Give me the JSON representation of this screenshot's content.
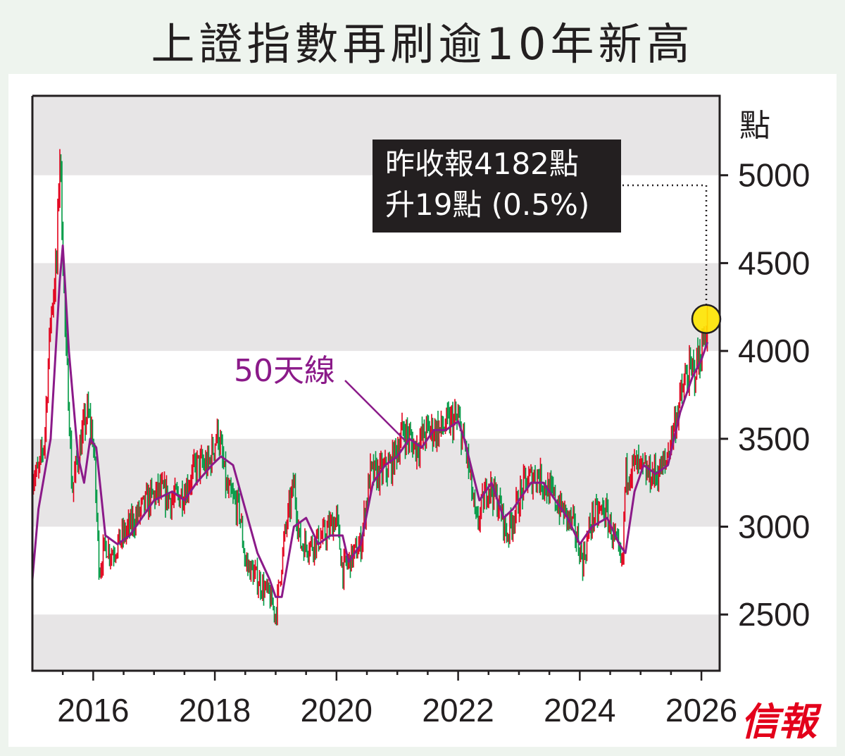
{
  "title": "上證指數再刷逾10年新高",
  "logo": "信報",
  "colors": {
    "up": "#e3001b",
    "down": "#009944",
    "ma": "#8b1a89",
    "band": "#e7e5e6",
    "highlight": "#ffe600"
  },
  "chart_data": {
    "type": "line",
    "title": "上證指數再刷逾10年新高",
    "ylabel": "點",
    "ylim": [
      2180,
      5452
    ],
    "xlim": [
      2015.0,
      2026.3
    ],
    "yticks": [
      "2500",
      "3000",
      "3500",
      "4000",
      "4500",
      "5000"
    ],
    "xticks": [
      "2016",
      "2018",
      "2020",
      "2022",
      "2024",
      "2026"
    ],
    "annotation": {
      "line1": "昨收報4182點",
      "line2": "升19點 (0.5%)",
      "value": 4182
    },
    "ma_label": "50天線",
    "series": [
      {
        "name": "上證指數",
        "x": [
          2015.0,
          2015.1,
          2015.2,
          2015.3,
          2015.4,
          2015.45,
          2015.55,
          2015.6,
          2015.65,
          2015.75,
          2015.9,
          2016.0,
          2016.1,
          2016.2,
          2016.3,
          2016.5,
          2016.7,
          2016.9,
          2017.1,
          2017.3,
          2017.5,
          2017.7,
          2017.9,
          2018.05,
          2018.2,
          2018.4,
          2018.5,
          2018.7,
          2018.9,
          2019.0,
          2019.15,
          2019.3,
          2019.4,
          2019.6,
          2019.8,
          2020.0,
          2020.1,
          2020.3,
          2020.4,
          2020.55,
          2020.7,
          2020.9,
          2021.1,
          2021.3,
          2021.5,
          2021.7,
          2021.9,
          2022.0,
          2022.15,
          2022.3,
          2022.5,
          2022.7,
          2022.8,
          2022.95,
          2023.1,
          2023.3,
          2023.5,
          2023.7,
          2023.9,
          2024.05,
          2024.2,
          2024.4,
          2024.6,
          2024.7,
          2024.75,
          2024.9,
          2025.1,
          2025.25,
          2025.4,
          2025.6,
          2025.75,
          2025.9,
          2026.0,
          2026.1
        ],
        "values": [
          3300,
          3300,
          3500,
          4200,
          4500,
          5170,
          4000,
          3700,
          3200,
          3400,
          3650,
          3500,
          2750,
          2900,
          2850,
          2950,
          3050,
          3150,
          3200,
          3150,
          3200,
          3350,
          3350,
          3550,
          3200,
          3100,
          2800,
          2700,
          2600,
          2500,
          2950,
          3250,
          2900,
          2900,
          2950,
          3050,
          2750,
          2850,
          2900,
          3300,
          3300,
          3350,
          3550,
          3450,
          3550,
          3550,
          3600,
          3600,
          3400,
          3000,
          3250,
          3100,
          2950,
          3100,
          3250,
          3300,
          3200,
          3100,
          3000,
          2800,
          3050,
          3100,
          2900,
          2750,
          3300,
          3350,
          3300,
          3300,
          3350,
          3650,
          3850,
          3900,
          4000,
          4182
        ]
      },
      {
        "name": "50天線",
        "x": [
          2015.0,
          2015.1,
          2015.3,
          2015.45,
          2015.5,
          2015.6,
          2015.75,
          2015.85,
          2015.95,
          2016.05,
          2016.2,
          2016.4,
          2016.6,
          2016.8,
          2017.0,
          2017.3,
          2017.5,
          2017.7,
          2017.95,
          2018.1,
          2018.3,
          2018.5,
          2018.7,
          2018.9,
          2019.0,
          2019.1,
          2019.3,
          2019.5,
          2019.7,
          2019.9,
          2020.1,
          2020.2,
          2020.4,
          2020.6,
          2020.8,
          2021.0,
          2021.2,
          2021.4,
          2021.6,
          2021.8,
          2022.0,
          2022.1,
          2022.35,
          2022.55,
          2022.75,
          2022.9,
          2023.2,
          2023.4,
          2023.6,
          2023.8,
          2024.0,
          2024.2,
          2024.45,
          2024.65,
          2024.75,
          2024.9,
          2025.05,
          2025.25,
          2025.45,
          2025.65,
          2025.85,
          2026.0,
          2026.1
        ],
        "values": [
          2700,
          3100,
          3500,
          4400,
          4600,
          4000,
          3400,
          3250,
          3500,
          3450,
          2950,
          2900,
          2950,
          3050,
          3150,
          3200,
          3150,
          3250,
          3350,
          3400,
          3350,
          3100,
          2850,
          2700,
          2600,
          2600,
          3000,
          3050,
          2900,
          2950,
          2950,
          2800,
          2900,
          3250,
          3350,
          3400,
          3500,
          3450,
          3550,
          3550,
          3600,
          3500,
          3150,
          3250,
          3050,
          3100,
          3250,
          3250,
          3150,
          3050,
          2900,
          3000,
          3050,
          2900,
          2850,
          3200,
          3350,
          3300,
          3350,
          3650,
          3850,
          3950,
          4050
        ]
      }
    ]
  }
}
